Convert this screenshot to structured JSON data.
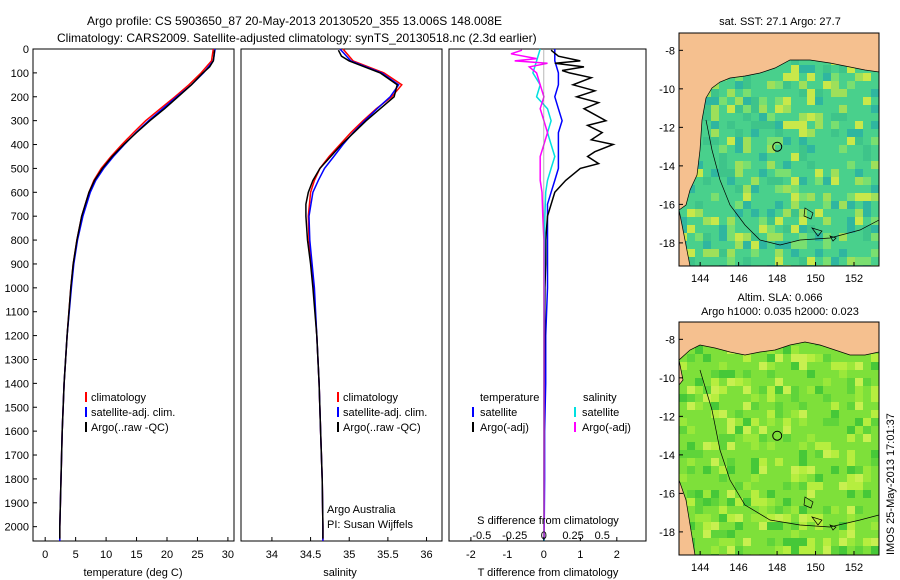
{
  "header": {
    "line1": "Argo profile: CS 5903650_87 20-May-2013 20130520_355 13.006S 148.008E",
    "line2": "Climatology: CARS2009. Satellite-adjusted climatology: synTS_20130518.nc (2.3d earlier)"
  },
  "colors": {
    "climatology": "#ff0000",
    "satellite": "#0000ff",
    "argo": "#000000",
    "argo_s": "#ff00ff",
    "sat_s": "#00e0e0",
    "land": "#f5c08f"
  },
  "chart_data": [
    {
      "type": "line",
      "name": "temperature",
      "xlabel": "temperature (deg C)",
      "ylabel": "",
      "xlim": [
        -2,
        31
      ],
      "ylim": [
        2060,
        0
      ],
      "xticks": [
        "0",
        "5",
        "10",
        "15",
        "20",
        "25",
        "30"
      ],
      "xtick_values": [
        0,
        5,
        10,
        15,
        20,
        25,
        30
      ],
      "yticks": [
        "0",
        "100",
        "200",
        "300",
        "400",
        "500",
        "600",
        "700",
        "800",
        "900",
        "1000",
        "1100",
        "1200",
        "1300",
        "1400",
        "1500",
        "1600",
        "1700",
        "1800",
        "1900",
        "2000"
      ],
      "ytick_values": [
        0,
        100,
        200,
        300,
        400,
        500,
        600,
        700,
        800,
        900,
        1000,
        1100,
        1200,
        1300,
        1400,
        1500,
        1600,
        1700,
        1800,
        1900,
        2000
      ],
      "legend": [
        "climatology",
        "satellite-adj. clim.",
        "Argo(..raw -QC)"
      ],
      "series": [
        {
          "name": "climatology",
          "color": "#ff0000",
          "depth": [
            0,
            50,
            100,
            150,
            200,
            250,
            300,
            350,
            400,
            450,
            500,
            550,
            600,
            700,
            800,
            900,
            1000,
            1200,
            1400,
            1600,
            1800,
            2000,
            2060
          ],
          "values": [
            27.6,
            27.3,
            25.6,
            23.6,
            21.3,
            18.9,
            16.5,
            14.5,
            12.6,
            10.8,
            9.2,
            8.0,
            7.2,
            6.0,
            5.2,
            4.6,
            4.2,
            3.6,
            3.1,
            2.8,
            2.6,
            2.4,
            2.4
          ]
        },
        {
          "name": "satellite-adj. clim.",
          "color": "#0000ff",
          "depth": [
            0,
            50,
            100,
            150,
            200,
            250,
            300,
            350,
            400,
            450,
            500,
            550,
            600,
            700,
            800,
            900,
            1000,
            1200,
            1400,
            1600,
            1800,
            2000,
            2060
          ],
          "values": [
            27.9,
            27.6,
            26.0,
            24.0,
            21.6,
            19.3,
            17.0,
            14.9,
            13.0,
            11.2,
            9.6,
            8.3,
            7.4,
            6.2,
            5.3,
            4.7,
            4.3,
            3.6,
            3.1,
            2.8,
            2.6,
            2.4,
            2.4
          ]
        },
        {
          "name": "Argo(..raw -QC)",
          "color": "#000000",
          "depth": [
            5,
            30,
            50,
            75,
            100,
            150,
            200,
            250,
            300,
            350,
            400,
            450,
            500,
            550,
            600,
            700,
            800,
            900,
            1000,
            1200,
            1400,
            1600,
            1800,
            2000,
            2050
          ],
          "values": [
            27.8,
            27.7,
            27.6,
            27.0,
            25.9,
            24.0,
            21.8,
            19.6,
            17.2,
            15.0,
            12.9,
            11.0,
            9.4,
            8.1,
            7.2,
            6.0,
            5.2,
            4.6,
            4.2,
            3.6,
            3.1,
            2.8,
            2.6,
            2.4,
            2.4
          ]
        }
      ]
    },
    {
      "type": "line",
      "name": "salinity",
      "xlabel": "salinity",
      "xlim": [
        33.6,
        36.2
      ],
      "ylim": [
        2060,
        0
      ],
      "xticks": [
        "34",
        "34.5",
        "35",
        "35.5",
        "36"
      ],
      "xtick_values": [
        34,
        34.5,
        35,
        35.5,
        36
      ],
      "legend": [
        "climatology",
        "satellite-adj. clim.",
        "Argo(..raw -QC)"
      ],
      "annotation": [
        "Argo Australia",
        "PI: Susan Wijffels"
      ],
      "series": [
        {
          "name": "climatology",
          "color": "#ff0000",
          "depth": [
            0,
            50,
            100,
            150,
            200,
            250,
            300,
            350,
            400,
            450,
            500,
            550,
            600,
            700,
            800,
            900,
            1000,
            1200,
            1400,
            1600,
            1800,
            2000,
            2060
          ],
          "values": [
            34.92,
            35.05,
            35.45,
            35.68,
            35.55,
            35.35,
            35.18,
            35.02,
            34.88,
            34.74,
            34.62,
            34.55,
            34.5,
            34.47,
            34.48,
            34.51,
            34.54,
            34.58,
            34.61,
            34.63,
            34.65,
            34.66,
            34.66
          ]
        },
        {
          "name": "satellite-adj. clim.",
          "color": "#0000ff",
          "depth": [
            0,
            50,
            100,
            150,
            200,
            250,
            300,
            350,
            400,
            450,
            500,
            550,
            600,
            700,
            800,
            900,
            1000,
            1200,
            1400,
            1600,
            1800,
            2000,
            2060
          ],
          "values": [
            34.88,
            35.02,
            35.42,
            35.64,
            35.53,
            35.36,
            35.2,
            35.05,
            34.92,
            34.8,
            34.68,
            34.6,
            34.53,
            34.48,
            34.49,
            34.52,
            34.55,
            34.58,
            34.61,
            34.63,
            34.65,
            34.66,
            34.66
          ]
        },
        {
          "name": "Argo(..raw -QC)",
          "color": "#000000",
          "depth": [
            5,
            30,
            50,
            75,
            100,
            150,
            200,
            250,
            300,
            350,
            400,
            450,
            500,
            550,
            600,
            650,
            700,
            800,
            900,
            1000,
            1200,
            1400,
            1600,
            1800,
            2000,
            2050
          ],
          "values": [
            34.86,
            34.9,
            35.0,
            35.2,
            35.4,
            35.62,
            35.58,
            35.4,
            35.22,
            35.06,
            34.9,
            34.76,
            34.62,
            34.53,
            34.47,
            34.44,
            34.44,
            34.46,
            34.5,
            34.53,
            34.58,
            34.61,
            34.63,
            34.65,
            34.66,
            34.66
          ]
        }
      ]
    },
    {
      "type": "line",
      "name": "difference",
      "xlabel": "T difference from climatology",
      "xlabel_top": "S difference from climatology",
      "xlim": [
        -2.6,
        2.8
      ],
      "ylim": [
        2060,
        0
      ],
      "xticks": [
        "-2",
        "-1",
        "0",
        "1",
        "2"
      ],
      "xtick_values": [
        -2,
        -1,
        0,
        1,
        2
      ],
      "sticks": [
        "-0.5",
        "-0.25",
        "0",
        "0.25",
        "0.5"
      ],
      "stick_t_values": [
        -1.7,
        -0.8,
        0,
        0.8,
        1.6
      ],
      "legend_headers": [
        "temperature",
        "salinity"
      ],
      "legend": [
        "satellite",
        "Argo(-adj)",
        "satellite",
        "Argo(-adj)"
      ],
      "series": [
        {
          "name": "T satellite",
          "color": "#0000ff",
          "depth": [
            0,
            50,
            100,
            150,
            200,
            250,
            300,
            350,
            400,
            450,
            500,
            550,
            600,
            650,
            700,
            800,
            900,
            1000,
            1200,
            1400,
            1600,
            1800,
            2000,
            2060
          ],
          "values": [
            0.3,
            0.3,
            0.4,
            0.4,
            0.3,
            0.4,
            0.5,
            0.4,
            0.4,
            0.4,
            0.4,
            0.3,
            0.2,
            0.1,
            0.1,
            0.1,
            0.1,
            0.1,
            0.05,
            0.05,
            0.02,
            0.02,
            0.01,
            0.0
          ]
        },
        {
          "name": "T Argo(-adj)",
          "color": "#000000",
          "depth": [
            5,
            30,
            50,
            60,
            75,
            90,
            100,
            120,
            150,
            175,
            200,
            225,
            250,
            275,
            300,
            320,
            350,
            380,
            400,
            430,
            450,
            480,
            500,
            550,
            600,
            700,
            800,
            900,
            1000,
            1200,
            1400,
            1600,
            1800,
            2000,
            2050
          ],
          "values": [
            0.2,
            0.4,
            1.0,
            0.3,
            1.1,
            0.5,
            0.7,
            1.3,
            0.8,
            1.4,
            0.9,
            1.5,
            1.1,
            1.4,
            1.7,
            1.2,
            1.6,
            1.3,
            1.9,
            1.4,
            1.2,
            1.5,
            1.0,
            0.6,
            0.3,
            0.1,
            0.05,
            0.05,
            0.03,
            0.02,
            0.01,
            0.01,
            0.0,
            0.0,
            0.0
          ]
        },
        {
          "name": "S satellite",
          "color": "#00e0e0",
          "depth": [
            0,
            50,
            100,
            150,
            200,
            250,
            300,
            350,
            400,
            450,
            500,
            550,
            600,
            700,
            800,
            1000,
            1200,
            1400,
            1600,
            1800,
            2000,
            2060
          ],
          "values": [
            -0.1,
            -0.2,
            -0.3,
            -0.1,
            -0.2,
            0.1,
            0.2,
            0.1,
            0.2,
            0.3,
            0.2,
            0.1,
            0.05,
            0.03,
            0.02,
            0.01,
            0.0,
            0.0,
            0.0,
            0.0,
            0.0,
            0.0
          ]
        },
        {
          "name": "S Argo(-adj)",
          "color": "#ff00ff",
          "depth": [
            5,
            20,
            40,
            50,
            60,
            75,
            100,
            150,
            200,
            250,
            300,
            350,
            400,
            450,
            500,
            550,
            600,
            700,
            800,
            1000,
            1200,
            1400,
            1600,
            1800,
            2000,
            2050
          ],
          "values": [
            -0.6,
            -0.9,
            -0.2,
            -0.8,
            0.1,
            -0.4,
            -0.2,
            -0.1,
            0.0,
            -0.1,
            0.0,
            0.1,
            0.0,
            -0.1,
            -0.1,
            -0.1,
            -0.05,
            -0.03,
            0.0,
            0.0,
            0.0,
            0.0,
            0.0,
            0.0,
            0.0,
            0.0
          ]
        }
      ]
    },
    {
      "type": "heatmap",
      "name": "sst-map",
      "title": "sat. SST: 27.1  Argo: 27.7",
      "xticks": [
        "144",
        "146",
        "148",
        "150",
        "152"
      ],
      "yticks": [
        "-8",
        "-10",
        "-12",
        "-14",
        "-16",
        "-18"
      ],
      "lon_range": [
        142.9,
        153.3
      ],
      "lat_range": [
        -19.2,
        -7.1
      ],
      "marker": {
        "lon": 148.008,
        "lat": -13.006
      }
    },
    {
      "type": "heatmap",
      "name": "sla-map",
      "title1": "Altim. SLA: 0.066",
      "title2": "Argo h1000: 0.035 h2000: 0.023",
      "xticks": [
        "144",
        "146",
        "148",
        "150",
        "152"
      ],
      "yticks": [
        "-8",
        "-10",
        "-12",
        "-14",
        "-16",
        "-18"
      ],
      "lon_range": [
        142.9,
        153.3
      ],
      "lat_range": [
        -19.2,
        -7.1
      ],
      "marker": {
        "lon": 148.008,
        "lat": -13.006
      }
    }
  ],
  "footer": {
    "imos_stamp": "IMOS 25-May-2013 17:01:37"
  }
}
